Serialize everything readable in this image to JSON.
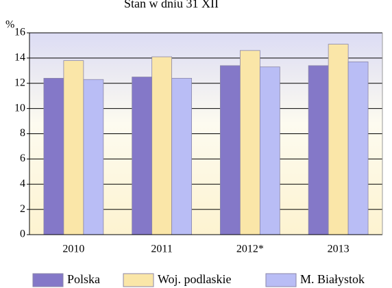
{
  "chart_data": {
    "type": "bar",
    "title": "Stan w dniu 31 XII",
    "y_label": "%",
    "categories": [
      "2010",
      "2011",
      "2012*",
      "2013"
    ],
    "series": [
      {
        "name": "Polska",
        "color": "#8478c8",
        "values": [
          12.4,
          12.5,
          13.4,
          13.4
        ]
      },
      {
        "name": "Woj. podlaskie",
        "color": "#fae6a8",
        "values": [
          13.8,
          14.1,
          14.6,
          15.1
        ]
      },
      {
        "name": "M. Białystok",
        "color": "#b9bdf5",
        "values": [
          12.3,
          12.4,
          13.3,
          13.7
        ]
      }
    ],
    "ylim": [
      0,
      16
    ],
    "yticks": [
      0,
      2,
      4,
      6,
      8,
      10,
      12,
      14,
      16
    ],
    "grid": true,
    "legend": "bottom"
  }
}
